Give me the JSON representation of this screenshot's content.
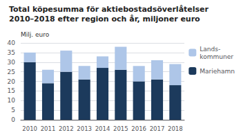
{
  "chart_data": {
    "type": "bar",
    "title": "Total köpesumma för aktiebostadsöverlåtelser",
    "subtitle": "2010–2018 efter region och år, miljoner euro",
    "ylabel": "Milj. euro",
    "categories": [
      "2010",
      "2011",
      "2012",
      "2013",
      "2014",
      "2015",
      "2016",
      "2017",
      "2018"
    ],
    "series": [
      {
        "name": "Mariehamn",
        "color": "#1c3a5c",
        "values": [
          30,
          19,
          25,
          21,
          27,
          26,
          20,
          21,
          18
        ]
      },
      {
        "name": "Lands-\nkommuner",
        "color": "#aec6e8",
        "values": [
          5,
          7,
          11,
          7,
          6,
          12,
          8,
          10,
          11
        ]
      }
    ],
    "stacked": true,
    "ylim": [
      0,
      40
    ],
    "yticks": [
      0,
      5,
      10,
      15,
      20,
      25,
      30,
      35,
      40
    ],
    "grid": true,
    "legend": "right"
  }
}
